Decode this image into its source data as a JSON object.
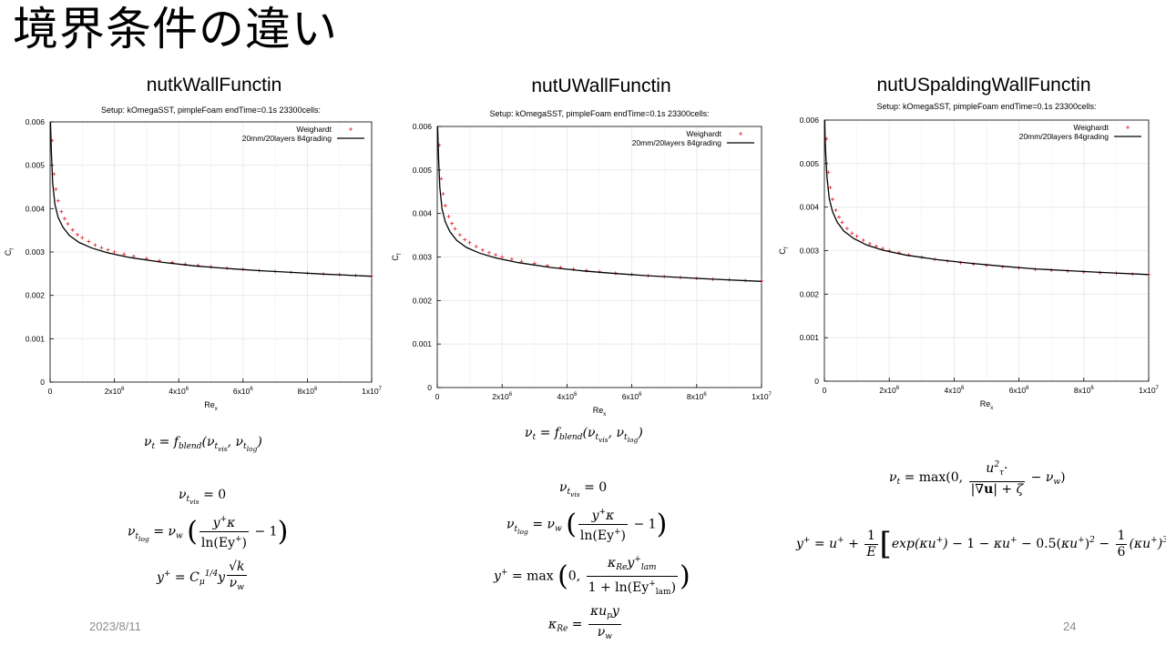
{
  "slide": {
    "title": "境界条件の違い",
    "date": "2023/8/11",
    "page": "24"
  },
  "panels": [
    {
      "title": "nutkWallFunctin"
    },
    {
      "title": "nutUWallFunctin"
    },
    {
      "title": "nutUSpaldingWallFunctin"
    }
  ],
  "chart_data": [
    {
      "type": "line",
      "title": "Setup: kOmegaSST, pimpleFoam endTime=0.1s 23300cells:",
      "xlabel": "Re",
      "xlabel_sub": "x",
      "ylabel": "C",
      "ylabel_sub": "f",
      "xlim": [
        0,
        10000000
      ],
      "ylim": [
        0,
        0.006
      ],
      "x_ticks": [
        {
          "v": 0,
          "base": "0",
          "exp": ""
        },
        {
          "v": 2000000,
          "base": "2x10",
          "exp": "6"
        },
        {
          "v": 4000000,
          "base": "4x10",
          "exp": "6"
        },
        {
          "v": 6000000,
          "base": "6x10",
          "exp": "6"
        },
        {
          "v": 8000000,
          "base": "8x10",
          "exp": "6"
        },
        {
          "v": 10000000,
          "base": "1x10",
          "exp": "7"
        }
      ],
      "y_ticks": [
        {
          "v": 0,
          "label": "0"
        },
        {
          "v": 0.001,
          "label": "0.001"
        },
        {
          "v": 0.002,
          "label": "0.002"
        },
        {
          "v": 0.003,
          "label": "0.003"
        },
        {
          "v": 0.004,
          "label": "0.004"
        },
        {
          "v": 0.005,
          "label": "0.005"
        },
        {
          "v": 0.006,
          "label": "0.006"
        }
      ],
      "grid": true,
      "legend_position": "top-right",
      "series": [
        {
          "name": "Weighardt",
          "style": "points",
          "color": "#e0202a",
          "x": [
            60000,
            120000,
            180000,
            250000,
            350000,
            450000,
            550000,
            700000,
            850000,
            1000000,
            1200000,
            1400000,
            1600000,
            1800000,
            2000000,
            2300000,
            2600000,
            3000000,
            3400000,
            3800000,
            4200000,
            4600000,
            5000000,
            5500000,
            6000000,
            6500000,
            7000000,
            7500000,
            8000000,
            8500000,
            9000000,
            9500000,
            10000000
          ],
          "y": [
            0.00557,
            0.0048,
            0.00445,
            0.00418,
            0.00393,
            0.00377,
            0.00365,
            0.00351,
            0.0034,
            0.00333,
            0.00324,
            0.00316,
            0.0031,
            0.00305,
            0.003,
            0.00295,
            0.0029,
            0.00285,
            0.0028,
            0.00276,
            0.00272,
            0.00269,
            0.00266,
            0.00263,
            0.0026,
            0.00257,
            0.00255,
            0.00253,
            0.00251,
            0.00249,
            0.00248,
            0.00246,
            0.00245
          ]
        },
        {
          "name": "20mm/20layers 84grading",
          "style": "line",
          "color": "#000000",
          "x": [
            10000,
            20000,
            40000,
            80000,
            150000,
            250000,
            400000,
            600000,
            900000,
            1300000,
            1800000,
            2500000,
            3500000,
            4500000,
            5500000,
            6500000,
            7500000,
            8500000,
            10000000
          ],
          "y": [
            0.006,
            0.0058,
            0.0053,
            0.0046,
            0.0041,
            0.0038,
            0.00357,
            0.00338,
            0.00322,
            0.00309,
            0.00298,
            0.00287,
            0.00276,
            0.00268,
            0.00262,
            0.00257,
            0.00253,
            0.00249,
            0.00244
          ]
        }
      ]
    },
    {
      "type": "line",
      "title": "Setup: kOmegaSST, pimpleFoam endTime=0.1s 23300cells:",
      "xlabel": "Re",
      "xlabel_sub": "x",
      "ylabel": "C",
      "ylabel_sub": "f",
      "xlim": [
        0,
        10000000
      ],
      "ylim": [
        0,
        0.006
      ],
      "x_ticks": [
        {
          "v": 0,
          "base": "0",
          "exp": ""
        },
        {
          "v": 2000000,
          "base": "2x10",
          "exp": "6"
        },
        {
          "v": 4000000,
          "base": "4x10",
          "exp": "6"
        },
        {
          "v": 6000000,
          "base": "6x10",
          "exp": "6"
        },
        {
          "v": 8000000,
          "base": "8x10",
          "exp": "6"
        },
        {
          "v": 10000000,
          "base": "1x10",
          "exp": "7"
        }
      ],
      "y_ticks": [
        {
          "v": 0,
          "label": "0"
        },
        {
          "v": 0.001,
          "label": "0.001"
        },
        {
          "v": 0.002,
          "label": "0.002"
        },
        {
          "v": 0.003,
          "label": "0.003"
        },
        {
          "v": 0.004,
          "label": "0.004"
        },
        {
          "v": 0.005,
          "label": "0.005"
        },
        {
          "v": 0.006,
          "label": "0.006"
        }
      ],
      "grid": true,
      "legend_position": "top-right",
      "series": [
        {
          "name": "Weighardt",
          "style": "points",
          "color": "#e0202a",
          "x": [
            60000,
            120000,
            180000,
            250000,
            350000,
            450000,
            550000,
            700000,
            850000,
            1000000,
            1200000,
            1400000,
            1600000,
            1800000,
            2000000,
            2300000,
            2600000,
            3000000,
            3400000,
            3800000,
            4200000,
            4600000,
            5000000,
            5500000,
            6000000,
            6500000,
            7000000,
            7500000,
            8000000,
            8500000,
            9000000,
            9500000,
            10000000
          ],
          "y": [
            0.00557,
            0.0048,
            0.00445,
            0.00418,
            0.00393,
            0.00377,
            0.00365,
            0.00351,
            0.0034,
            0.00333,
            0.00324,
            0.00316,
            0.0031,
            0.00305,
            0.003,
            0.00295,
            0.0029,
            0.00285,
            0.0028,
            0.00276,
            0.00272,
            0.00269,
            0.00266,
            0.00263,
            0.0026,
            0.00257,
            0.00255,
            0.00253,
            0.00251,
            0.00249,
            0.00248,
            0.00246,
            0.00245
          ]
        },
        {
          "name": "20mm/20layers 84grading",
          "style": "line",
          "color": "#000000",
          "x": [
            10000,
            20000,
            40000,
            80000,
            150000,
            250000,
            400000,
            600000,
            900000,
            1300000,
            1800000,
            2500000,
            3500000,
            4500000,
            5500000,
            6500000,
            7500000,
            8500000,
            10000000
          ],
          "y": [
            0.006,
            0.0058,
            0.0053,
            0.0046,
            0.0041,
            0.0038,
            0.00357,
            0.00338,
            0.00322,
            0.00309,
            0.00298,
            0.00287,
            0.00276,
            0.00268,
            0.00262,
            0.00257,
            0.00253,
            0.00249,
            0.00244
          ]
        }
      ]
    },
    {
      "type": "line",
      "title": "Setup: kOmegaSST, pimpleFoam endTime=0.1s 23300cells:",
      "xlabel": "Re",
      "xlabel_sub": "x",
      "ylabel": "C",
      "ylabel_sub": "f",
      "xlim": [
        0,
        10000000
      ],
      "ylim": [
        0,
        0.006
      ],
      "x_ticks": [
        {
          "v": 0,
          "base": "0",
          "exp": ""
        },
        {
          "v": 2000000,
          "base": "2x10",
          "exp": "6"
        },
        {
          "v": 4000000,
          "base": "4x10",
          "exp": "6"
        },
        {
          "v": 6000000,
          "base": "6x10",
          "exp": "6"
        },
        {
          "v": 8000000,
          "base": "8x10",
          "exp": "6"
        },
        {
          "v": 10000000,
          "base": "1x10",
          "exp": "7"
        }
      ],
      "y_ticks": [
        {
          "v": 0,
          "label": "0"
        },
        {
          "v": 0.001,
          "label": "0.001"
        },
        {
          "v": 0.002,
          "label": "0.002"
        },
        {
          "v": 0.003,
          "label": "0.003"
        },
        {
          "v": 0.004,
          "label": "0.004"
        },
        {
          "v": 0.005,
          "label": "0.005"
        },
        {
          "v": 0.006,
          "label": "0.006"
        }
      ],
      "grid": true,
      "legend_position": "top-right",
      "series": [
        {
          "name": "Weighardt",
          "style": "points",
          "color": "#e0202a",
          "x": [
            60000,
            120000,
            180000,
            250000,
            350000,
            450000,
            550000,
            700000,
            850000,
            1000000,
            1200000,
            1400000,
            1600000,
            1800000,
            2000000,
            2300000,
            2600000,
            3000000,
            3400000,
            3800000,
            4200000,
            4600000,
            5000000,
            5500000,
            6000000,
            6500000,
            7000000,
            7500000,
            8000000,
            8500000,
            9000000,
            9500000,
            10000000
          ],
          "y": [
            0.00557,
            0.0048,
            0.00445,
            0.00418,
            0.00393,
            0.00377,
            0.00365,
            0.00351,
            0.0034,
            0.00333,
            0.00324,
            0.00316,
            0.0031,
            0.00305,
            0.003,
            0.00295,
            0.0029,
            0.00285,
            0.0028,
            0.00276,
            0.00272,
            0.00269,
            0.00266,
            0.00263,
            0.0026,
            0.00257,
            0.00255,
            0.00253,
            0.00251,
            0.00249,
            0.00248,
            0.00246,
            0.00245
          ]
        },
        {
          "name": "20mm/20layers 84grading",
          "style": "line",
          "color": "#000000",
          "x": [
            10000,
            20000,
            40000,
            80000,
            150000,
            250000,
            400000,
            600000,
            900000,
            1300000,
            1800000,
            2500000,
            3500000,
            4500000,
            5500000,
            6500000,
            7500000,
            8500000,
            10000000
          ],
          "y": [
            0.006,
            0.00565,
            0.00525,
            0.0047,
            0.0042,
            0.0039,
            0.00365,
            0.00345,
            0.00328,
            0.00313,
            0.00301,
            0.0029,
            0.00279,
            0.00271,
            0.00264,
            0.00258,
            0.00254,
            0.0025,
            0.00245
          ]
        }
      ]
    }
  ]
}
